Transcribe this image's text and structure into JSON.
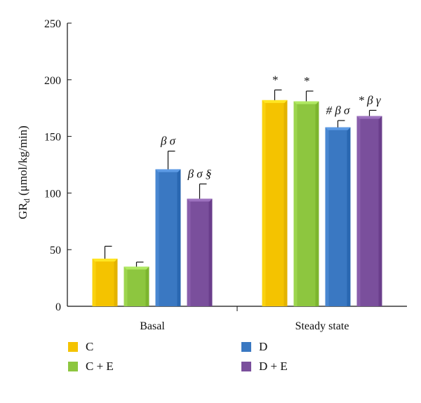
{
  "chart_data": {
    "type": "bar",
    "categories": [
      "Basal",
      "Steady state"
    ],
    "ylabel": {
      "main": "GR",
      "subscript": "d",
      "unit": " (μmol/kg/min)"
    },
    "ylim": [
      0,
      250
    ],
    "yticks": [
      0,
      50,
      100,
      150,
      200,
      250
    ],
    "legend_placement": "bottom",
    "series": [
      {
        "name": "C",
        "color": "#F4C300",
        "values": [
          42,
          182
        ],
        "errors": [
          11,
          9
        ],
        "annotations": [
          "",
          "*"
        ]
      },
      {
        "name": "C + E",
        "color": "#8DC63F",
        "values": [
          35,
          181
        ],
        "errors": [
          4,
          9
        ],
        "annotations": [
          "",
          "*"
        ]
      },
      {
        "name": "D",
        "color": "#3A78C2",
        "values": [
          121,
          158
        ],
        "errors": [
          16,
          6
        ],
        "annotations": [
          "β σ",
          "# β σ"
        ]
      },
      {
        "name": "D + E",
        "color": "#7A4F9C",
        "values": [
          95,
          168
        ],
        "errors": [
          13,
          5
        ],
        "annotations": [
          "β σ §",
          "* β  γ"
        ]
      }
    ]
  }
}
